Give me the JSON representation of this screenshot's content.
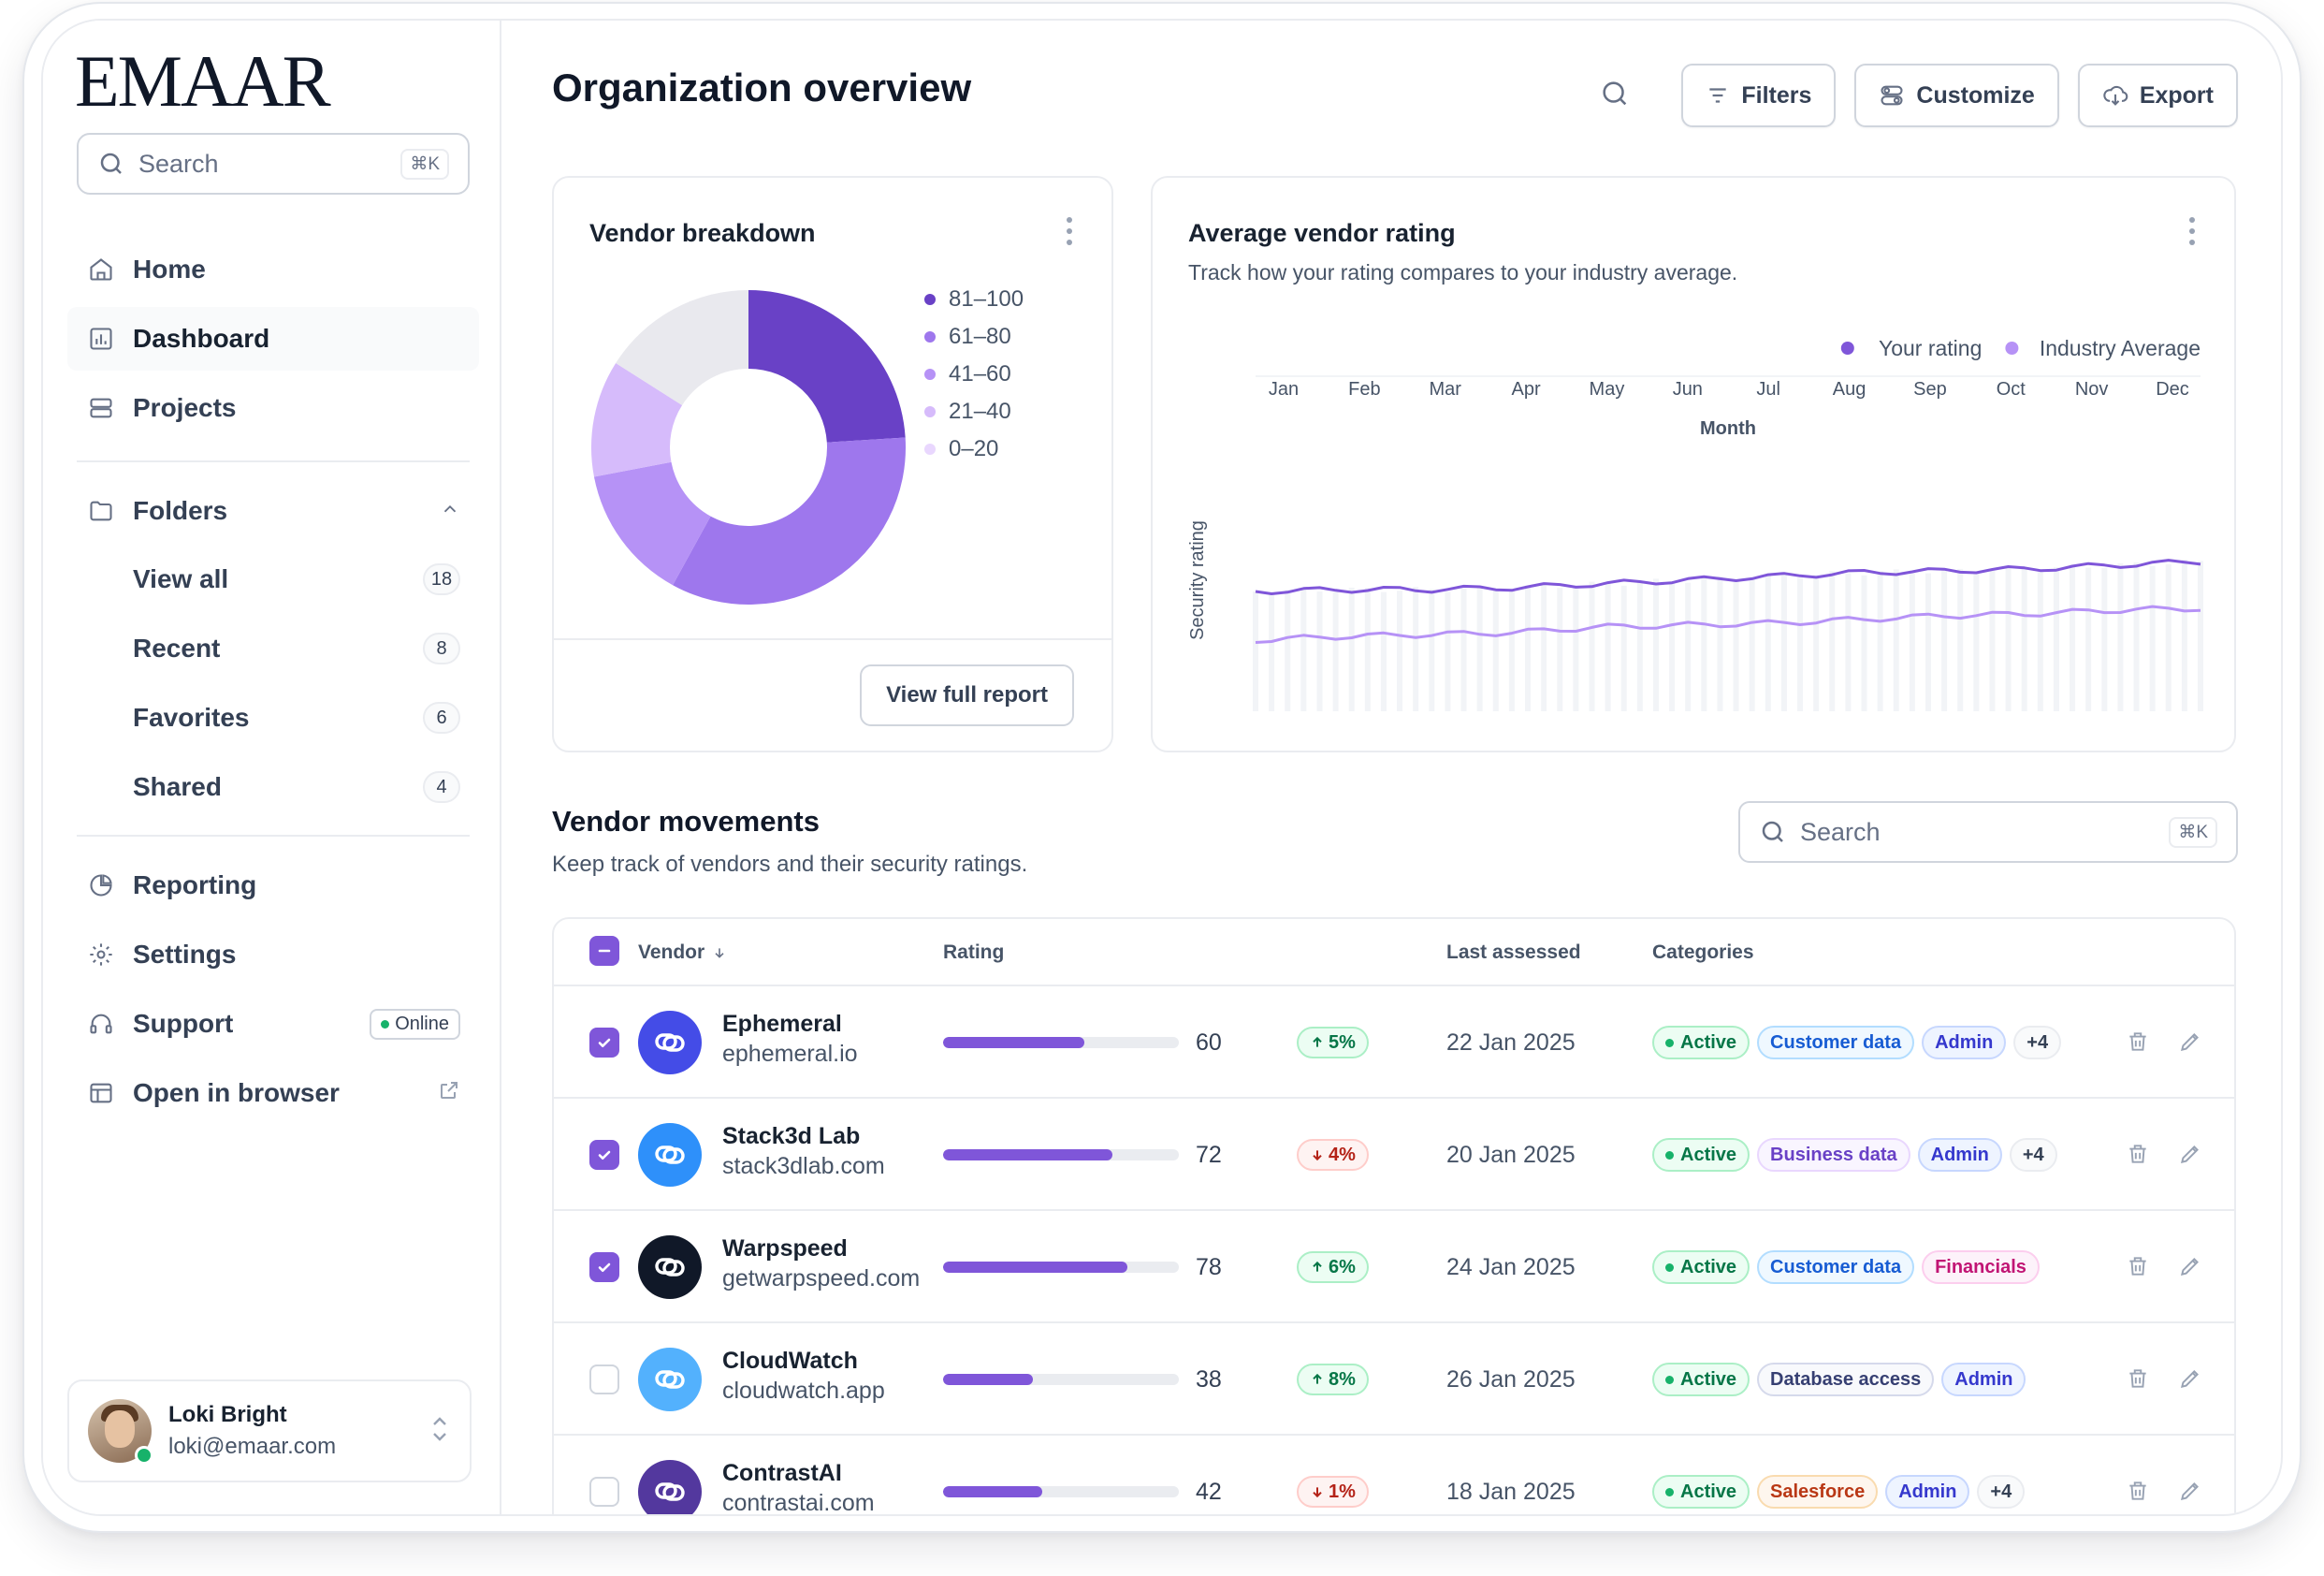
{
  "brand": {
    "logo": "EMAAR"
  },
  "sidebar": {
    "search_placeholder": "Search",
    "search_shortcut": "⌘K",
    "nav": [
      {
        "label": "Home",
        "icon": "home-icon"
      },
      {
        "label": "Dashboard",
        "icon": "bar-chart-icon",
        "active": true
      },
      {
        "label": "Projects",
        "icon": "layers-icon"
      }
    ],
    "folders": {
      "label": "Folders",
      "items": [
        {
          "label": "View all",
          "count": "18"
        },
        {
          "label": "Recent",
          "count": "8"
        },
        {
          "label": "Favorites",
          "count": "6"
        },
        {
          "label": "Shared",
          "count": "4"
        }
      ]
    },
    "nav2": [
      {
        "label": "Reporting",
        "icon": "pie-chart-icon"
      },
      {
        "label": "Settings",
        "icon": "gear-icon"
      },
      {
        "label": "Support",
        "icon": "headset-icon",
        "badge": "Online"
      },
      {
        "label": "Open in browser",
        "icon": "browser-icon"
      }
    ],
    "user": {
      "name": "Loki Bright",
      "email": "loki@emaar.com"
    }
  },
  "header": {
    "title": "Organization overview",
    "buttons": [
      "Filters",
      "Customize",
      "Export"
    ]
  },
  "vendor_breakdown": {
    "title": "Vendor breakdown",
    "button": "View full report",
    "colors": [
      "#6941c6",
      "#9e77ed",
      "#b692f6",
      "#d6bbfb",
      "#e9e9ee"
    ]
  },
  "rating_card": {
    "title": "Average vendor rating",
    "subtitle": "Track how your rating compares to your industry average."
  },
  "chart_data": [
    {
      "type": "pie",
      "title": "Vendor breakdown",
      "labels": [
        "81–100",
        "61–80",
        "41–60",
        "21–40",
        "0–20"
      ],
      "values": [
        24,
        34,
        14,
        12,
        16
      ]
    },
    {
      "type": "line",
      "title": "Average vendor rating",
      "xlabel": "Month",
      "ylabel": "Security rating",
      "categories": [
        "Jan",
        "Feb",
        "Mar",
        "Apr",
        "May",
        "Jun",
        "Jul",
        "Aug",
        "Sep",
        "Oct",
        "Nov",
        "Dec"
      ],
      "series": [
        {
          "name": "Your rating",
          "color": "#7f56d9",
          "values": [
            64,
            65,
            65,
            66,
            68,
            70,
            72,
            74,
            75,
            76,
            78,
            80
          ]
        },
        {
          "name": "Industry Average",
          "color": "#b692f6",
          "values": [
            38,
            40,
            41,
            42,
            45,
            46,
            47,
            49,
            51,
            52,
            54,
            55
          ]
        }
      ],
      "ylim": [
        0,
        100
      ],
      "legend": "top-right"
    }
  ],
  "movements": {
    "title": "Vendor movements",
    "subtitle": "Keep track of vendors and their security ratings.",
    "search_placeholder": "Search",
    "search_shortcut": "⌘K",
    "columns": [
      "Vendor",
      "Rating",
      "Last assessed",
      "Categories"
    ],
    "rows": [
      {
        "name": "Ephemeral",
        "domain": "ephemeral.io",
        "rating": 60,
        "delta": "5%",
        "dir": "up",
        "date": "22 Jan 2025",
        "checked": true,
        "logo_color": "#444ce7",
        "tags": [
          [
            "Active",
            "green"
          ],
          [
            "Customer data",
            "blue"
          ],
          [
            "Admin",
            "indigo"
          ],
          [
            "+4",
            "gray"
          ]
        ]
      },
      {
        "name": "Stack3d Lab",
        "domain": "stack3dlab.com",
        "rating": 72,
        "delta": "4%",
        "dir": "down",
        "date": "20 Jan 2025",
        "checked": true,
        "logo_color": "#2e90fa",
        "tags": [
          [
            "Active",
            "green"
          ],
          [
            "Business data",
            "purple"
          ],
          [
            "Admin",
            "indigo"
          ],
          [
            "+4",
            "gray"
          ]
        ]
      },
      {
        "name": "Warpspeed",
        "domain": "getwarpspeed.com",
        "rating": 78,
        "delta": "6%",
        "dir": "up",
        "date": "24 Jan 2025",
        "checked": true,
        "logo_color": "#101828",
        "tags": [
          [
            "Active",
            "green"
          ],
          [
            "Customer data",
            "blue"
          ],
          [
            "Financials",
            "pink"
          ]
        ]
      },
      {
        "name": "CloudWatch",
        "domain": "cloudwatch.app",
        "rating": 38,
        "delta": "8%",
        "dir": "up",
        "date": "26 Jan 2025",
        "checked": false,
        "logo_color": "#53b1fd",
        "tags": [
          [
            "Active",
            "green"
          ],
          [
            "Database access",
            "slate"
          ],
          [
            "Admin",
            "indigo"
          ]
        ]
      },
      {
        "name": "ContrastAI",
        "domain": "contrastai.com",
        "rating": 42,
        "delta": "1%",
        "dir": "down",
        "date": "18 Jan 2025",
        "checked": false,
        "logo_color": "#53389e",
        "tags": [
          [
            "Active",
            "green"
          ],
          [
            "Salesforce",
            "orange"
          ],
          [
            "Admin",
            "indigo"
          ],
          [
            "+4",
            "gray"
          ]
        ]
      }
    ]
  }
}
